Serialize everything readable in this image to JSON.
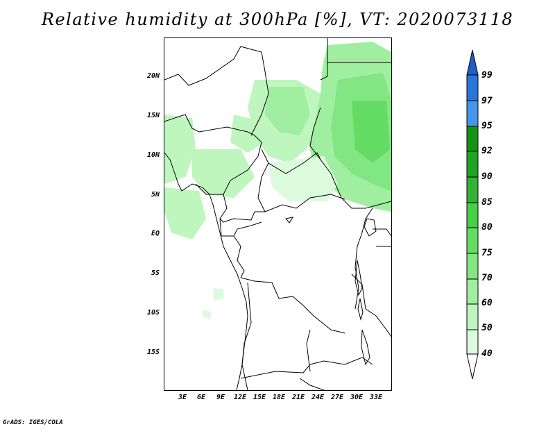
{
  "title": "Relative humidity at 300hPa [%], VT: 2020073118",
  "credit": "GrADS: IGES/COLA",
  "map": {
    "region": "Central Africa",
    "lat_labels": [
      "20N",
      "15N",
      "10N",
      "5N",
      "EQ",
      "5S",
      "10S",
      "15S"
    ],
    "lon_labels": [
      "3E",
      "6E",
      "9E",
      "12E",
      "15E",
      "18E",
      "21E",
      "24E",
      "27E",
      "30E",
      "33E"
    ]
  },
  "colorbar": {
    "labels": [
      "99",
      "97",
      "95",
      "92",
      "90",
      "85",
      "80",
      "75",
      "70",
      "60",
      "50",
      "40"
    ],
    "colors": {
      "above_99": "#1e5cc8",
      "97_99": "#2878dc",
      "95_97": "#4696ec",
      "92_95": "#149414",
      "90_92": "#1ea41e",
      "85_90": "#32b432",
      "80_85": "#46d046",
      "75_80": "#64dc64",
      "70_75": "#82e682",
      "60_70": "#a0eea0",
      "50_60": "#bef6be",
      "40_50": "#dcfadc",
      "below_40": "#ffffff"
    }
  }
}
